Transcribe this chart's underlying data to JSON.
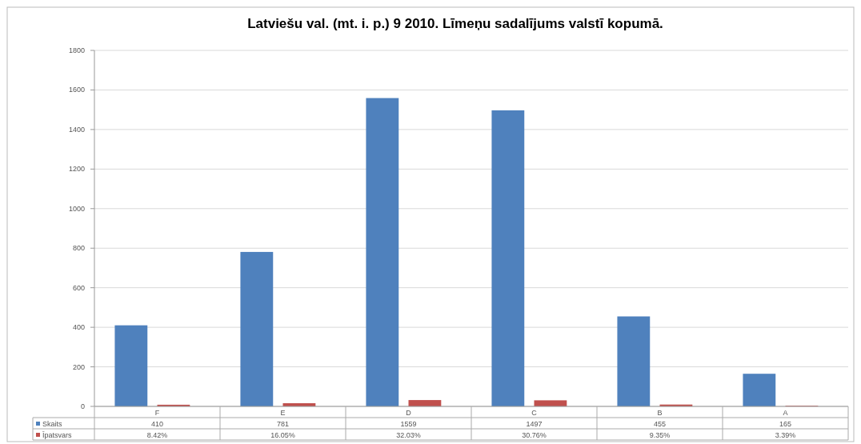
{
  "chart_data": {
    "type": "bar",
    "title": "Latviešu val. (mt. i. p.) 9 2010. Līmeņu sadalījums valstī kopumā.",
    "categories": [
      "F",
      "E",
      "D",
      "C",
      "B",
      "A"
    ],
    "series": [
      {
        "name": "Skaits",
        "color": "#4f81bd",
        "values": [
          410,
          781,
          1559,
          1497,
          455,
          165
        ],
        "value_labels": [
          "410",
          "781",
          "1559",
          "1497",
          "455",
          "165"
        ]
      },
      {
        "name": "Īpatsvars",
        "color": "#c0504d",
        "values": [
          8.42,
          16.05,
          32.03,
          30.76,
          9.35,
          3.39
        ],
        "value_labels": [
          "8.42%",
          "16.05%",
          "32.03%",
          "30.76%",
          "9.35%",
          "3.39%"
        ]
      }
    ],
    "ylim": [
      0,
      1800
    ],
    "yticks": [
      0,
      200,
      400,
      600,
      800,
      1000,
      1200,
      1400,
      1600,
      1800
    ],
    "grid": "y",
    "legend": "bottom"
  }
}
